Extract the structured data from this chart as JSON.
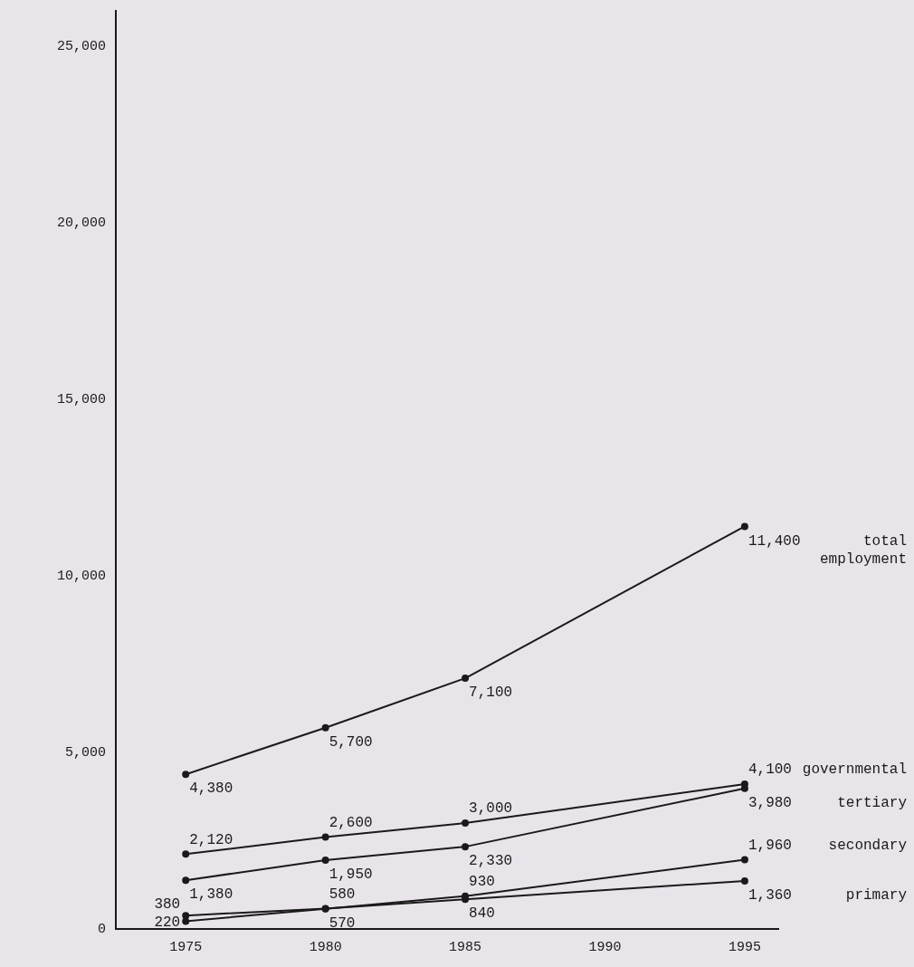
{
  "chart_data": {
    "type": "line",
    "x": [
      1975,
      1980,
      1985,
      1995
    ],
    "series": [
      {
        "name": "total employment",
        "color": "#1a1a1a",
        "values": [
          4380,
          5700,
          7100,
          11400
        ],
        "value_labels": [
          "4,380",
          "5,700",
          "7,100",
          "11,400"
        ]
      },
      {
        "name": "governmental",
        "color": "#1a1a1a",
        "values": [
          2120,
          2600,
          3000,
          4100
        ],
        "value_labels": [
          "2,120",
          "2,600",
          "3,000",
          "4,100"
        ]
      },
      {
        "name": "tertiary",
        "color": "#1a1a1a",
        "values": [
          1380,
          1950,
          2330,
          3980
        ],
        "value_labels": [
          "1,380",
          "1,950",
          "2,330",
          "3,980"
        ]
      },
      {
        "name": "secondary",
        "color": "#1a1a1a",
        "values": [
          220,
          570,
          930,
          1960
        ],
        "value_labels": [
          "220",
          "570",
          "930",
          "1,960"
        ]
      },
      {
        "name": "primary",
        "color": "#1a1a1a",
        "values": [
          380,
          580,
          840,
          1360
        ],
        "value_labels": [
          "380",
          "580",
          "840",
          "1,360"
        ]
      }
    ],
    "xlim": [
      1972.5,
      1996.2
    ],
    "xticks": [
      1975,
      1980,
      1985,
      1990,
      1995
    ],
    "ylim": [
      0,
      26000
    ],
    "yticks": [
      0,
      {
        "value": 5000,
        "label": "5,000"
      },
      {
        "value": 10000,
        "label": "10,000"
      },
      {
        "value": 15000,
        "label": "15,000"
      },
      {
        "value": 20000,
        "label": "20,000"
      },
      {
        "value": 25000,
        "label": "25,000"
      }
    ],
    "grid": false,
    "legend": false,
    "marker": "circle",
    "line_style": "solid"
  }
}
